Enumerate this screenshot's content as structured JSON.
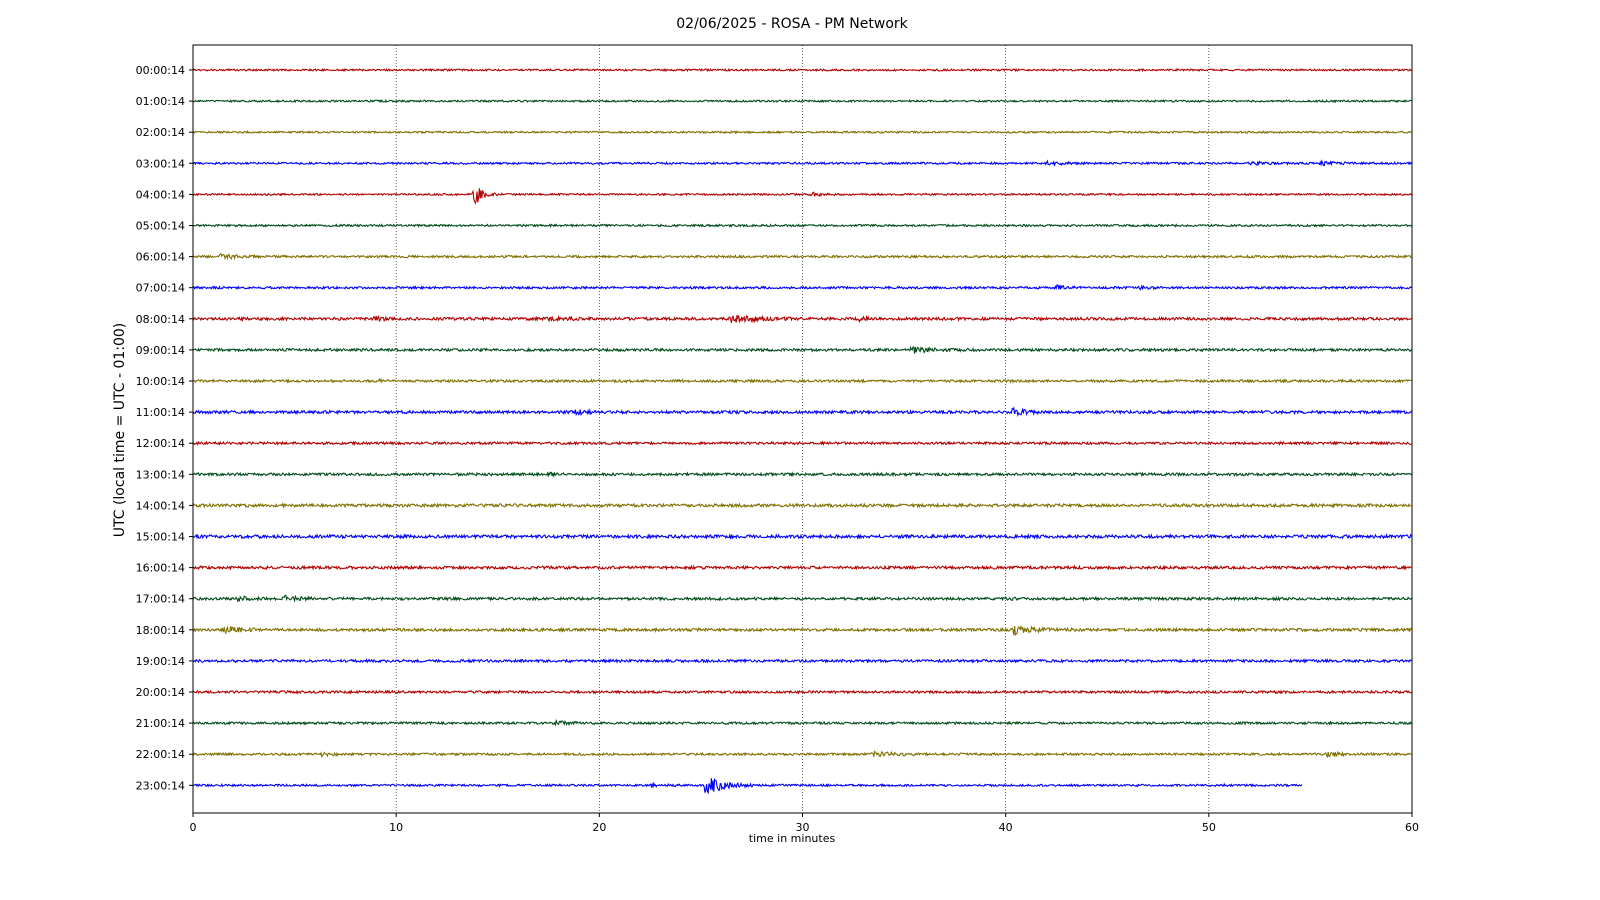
{
  "chart_data": {
    "type": "line",
    "title": "02/06/2025 - ROSA - PM Network",
    "xlabel": "time in minutes",
    "ylabel": "UTC (local time = UTC - 01:00)",
    "xlim": [
      0,
      60
    ],
    "x_ticks": [
      "0",
      "10",
      "20",
      "30",
      "40",
      "50",
      "60"
    ],
    "grid": "vertical-dotted",
    "colors": [
      "#b30000",
      "#004d1a",
      "#807000",
      "#0000ff"
    ],
    "rows": [
      {
        "label": "00:00:14",
        "end": 60,
        "noise": 0.9,
        "events": []
      },
      {
        "label": "01:00:14",
        "end": 60,
        "noise": 0.9,
        "events": []
      },
      {
        "label": "02:00:14",
        "end": 60,
        "noise": 0.9,
        "events": []
      },
      {
        "label": "03:00:14",
        "end": 60,
        "noise": 1.0,
        "events": [
          {
            "t": 42,
            "amp": 1.5,
            "dur": 1.5
          },
          {
            "t": 52,
            "amp": 1.5,
            "dur": 1.5
          },
          {
            "t": 55.5,
            "amp": 1.5,
            "dur": 1.5
          }
        ]
      },
      {
        "label": "04:00:14",
        "end": 60,
        "noise": 0.9,
        "events": [
          {
            "t": 13.8,
            "amp": 14,
            "dur": 0.7
          },
          {
            "t": 30.4,
            "amp": 3,
            "dur": 0.5
          }
        ]
      },
      {
        "label": "05:00:14",
        "end": 60,
        "noise": 1.0,
        "events": []
      },
      {
        "label": "06:00:14",
        "end": 60,
        "noise": 1.1,
        "events": [
          {
            "t": 1.3,
            "amp": 3,
            "dur": 1.2
          }
        ]
      },
      {
        "label": "07:00:14",
        "end": 60,
        "noise": 1.1,
        "events": [
          {
            "t": 42.5,
            "amp": 2,
            "dur": 0.8
          },
          {
            "t": 46.6,
            "amp": 2,
            "dur": 0.5
          }
        ]
      },
      {
        "label": "08:00:14",
        "end": 60,
        "noise": 1.4,
        "events": [
          {
            "t": 8.8,
            "amp": 2.5,
            "dur": 0.8
          },
          {
            "t": 17.5,
            "amp": 2.5,
            "dur": 1.0
          },
          {
            "t": 26.5,
            "amp": 3,
            "dur": 2.5
          },
          {
            "t": 32.8,
            "amp": 3,
            "dur": 0.4
          }
        ]
      },
      {
        "label": "09:00:14",
        "end": 60,
        "noise": 1.3,
        "events": [
          {
            "t": 35.3,
            "amp": 3,
            "dur": 1.5
          }
        ]
      },
      {
        "label": "10:00:14",
        "end": 60,
        "noise": 1.2,
        "events": [
          {
            "t": 9.1,
            "amp": 2,
            "dur": 0.3
          }
        ]
      },
      {
        "label": "11:00:14",
        "end": 60,
        "noise": 1.4,
        "events": [
          {
            "t": 18.8,
            "amp": 2,
            "dur": 1.0
          },
          {
            "t": 40.3,
            "amp": 3.5,
            "dur": 1.0
          }
        ]
      },
      {
        "label": "12:00:14",
        "end": 60,
        "noise": 1.2,
        "events": []
      },
      {
        "label": "13:00:14",
        "end": 60,
        "noise": 1.3,
        "events": [
          {
            "t": 17.6,
            "amp": 2,
            "dur": 0.3
          }
        ]
      },
      {
        "label": "14:00:14",
        "end": 60,
        "noise": 1.5,
        "events": []
      },
      {
        "label": "15:00:14",
        "end": 60,
        "noise": 1.6,
        "events": []
      },
      {
        "label": "16:00:14",
        "end": 60,
        "noise": 1.4,
        "events": []
      },
      {
        "label": "17:00:14",
        "end": 60,
        "noise": 1.3,
        "events": [
          {
            "t": 2.2,
            "amp": 2.5,
            "dur": 0.8
          },
          {
            "t": 4.5,
            "amp": 2.5,
            "dur": 1.2
          },
          {
            "t": 40.1,
            "amp": 2,
            "dur": 0.3
          }
        ]
      },
      {
        "label": "18:00:14",
        "end": 60,
        "noise": 1.4,
        "events": [
          {
            "t": 1.6,
            "amp": 3,
            "dur": 1.2
          },
          {
            "t": 8.4,
            "amp": 2,
            "dur": 0.3
          },
          {
            "t": 40.4,
            "amp": 4,
            "dur": 1.5
          }
        ]
      },
      {
        "label": "19:00:14",
        "end": 60,
        "noise": 1.3,
        "events": []
      },
      {
        "label": "20:00:14",
        "end": 60,
        "noise": 1.2,
        "events": []
      },
      {
        "label": "21:00:14",
        "end": 60,
        "noise": 1.1,
        "events": [
          {
            "t": 17.8,
            "amp": 2,
            "dur": 1.2
          }
        ]
      },
      {
        "label": "22:00:14",
        "end": 60,
        "noise": 1.1,
        "events": [
          {
            "t": 6.3,
            "amp": 1.5,
            "dur": 1.0
          },
          {
            "t": 33.5,
            "amp": 2,
            "dur": 2.0
          },
          {
            "t": 55.8,
            "amp": 2,
            "dur": 1.5
          }
        ]
      },
      {
        "label": "23:00:14",
        "end": 54.6,
        "noise": 1.0,
        "events": [
          {
            "t": 25.2,
            "amp": 10,
            "dur": 1.5
          },
          {
            "t": 22.5,
            "amp": 1.5,
            "dur": 1.0
          },
          {
            "t": 50.6,
            "amp": 2,
            "dur": 0.3
          }
        ]
      }
    ]
  }
}
